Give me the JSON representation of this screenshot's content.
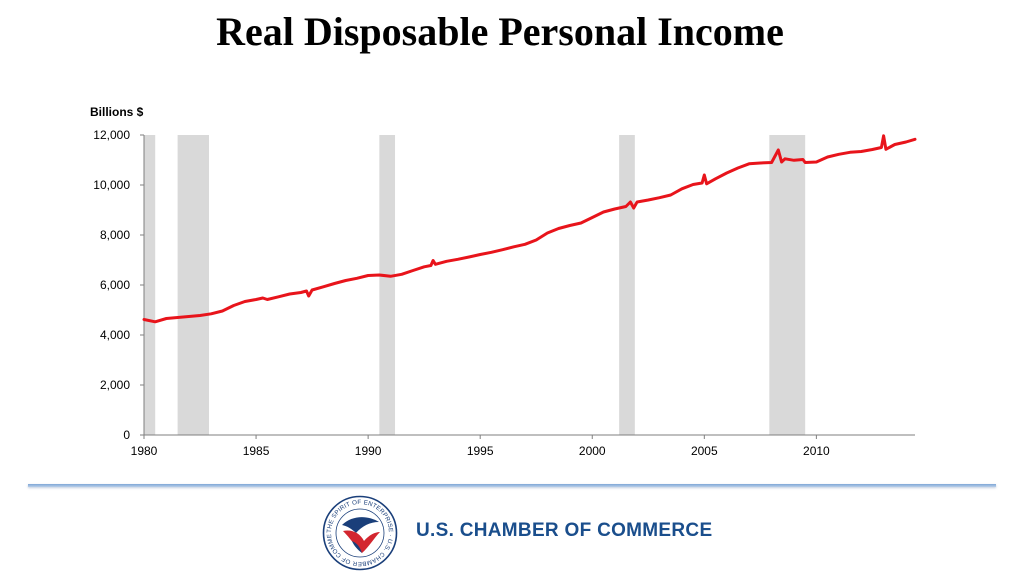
{
  "header": {
    "title": "Real Disposable Personal Income"
  },
  "chart_data": {
    "type": "line",
    "title": "Real Disposable Personal Income",
    "ylabel": "Billions $",
    "xlabel": "",
    "xlim": [
      1980,
      2014.4
    ],
    "ylim": [
      0,
      12000
    ],
    "x_ticks": [
      1980,
      1985,
      1990,
      1995,
      2000,
      2005,
      2010
    ],
    "x_tick_labels": [
      "1980",
      "1985",
      "1990",
      "1995",
      "2000",
      "2005",
      "2010"
    ],
    "y_ticks": [
      0,
      2000,
      4000,
      6000,
      8000,
      10000,
      12000
    ],
    "y_tick_labels": [
      "0",
      "2,000",
      "4,000",
      "6,000",
      "8,000",
      "10,000",
      "12,000"
    ],
    "line_color": "#e8141b",
    "recession_color": "#d9d9d9",
    "recessions": [
      [
        1980.0,
        1980.5
      ],
      [
        1981.5,
        1982.9
      ],
      [
        1990.5,
        1991.2
      ],
      [
        2001.2,
        2001.9
      ],
      [
        2007.9,
        2009.5
      ]
    ],
    "series": [
      {
        "x": [
          1980.0,
          1980.5,
          1981.0,
          1981.5,
          1982.0,
          1982.5,
          1983.0,
          1983.5,
          1984.0,
          1984.5,
          1985.0,
          1985.3,
          1985.5,
          1986.0,
          1986.5,
          1987.0,
          1987.25,
          1987.35,
          1987.5,
          1988.0,
          1988.5,
          1989.0,
          1989.5,
          1990.0,
          1990.5,
          1991.0,
          1991.5,
          1992.0,
          1992.5,
          1992.8,
          1992.9,
          1993.0,
          1993.5,
          1994.0,
          1994.5,
          1995.0,
          1995.5,
          1996.0,
          1996.5,
          1997.0,
          1997.5,
          1998.0,
          1998.5,
          1999.0,
          1999.5,
          2000.0,
          2000.5,
          2001.0,
          2001.5,
          2001.7,
          2001.85,
          2002.0,
          2002.5,
          2003.0,
          2003.5,
          2004.0,
          2004.5,
          2004.9,
          2005.0,
          2005.1,
          2005.5,
          2006.0,
          2006.5,
          2007.0,
          2007.5,
          2008.0,
          2008.3,
          2008.45,
          2008.6,
          2009.0,
          2009.4,
          2009.5,
          2010.0,
          2010.5,
          2011.0,
          2011.5,
          2012.0,
          2012.5,
          2012.9,
          2013.0,
          2013.1,
          2013.5,
          2014.0,
          2014.4
        ],
        "values": [
          4620,
          4530,
          4660,
          4700,
          4740,
          4780,
          4850,
          4960,
          5180,
          5340,
          5420,
          5480,
          5420,
          5530,
          5640,
          5700,
          5760,
          5560,
          5800,
          5930,
          6060,
          6180,
          6270,
          6380,
          6400,
          6350,
          6430,
          6580,
          6730,
          6780,
          6980,
          6830,
          6950,
          7030,
          7120,
          7220,
          7310,
          7410,
          7530,
          7630,
          7800,
          8080,
          8260,
          8380,
          8480,
          8700,
          8920,
          9040,
          9140,
          9320,
          9080,
          9320,
          9400,
          9490,
          9600,
          9850,
          10020,
          10080,
          10400,
          10050,
          10250,
          10480,
          10680,
          10850,
          10880,
          10900,
          11400,
          10920,
          11050,
          10990,
          11020,
          10900,
          10920,
          11120,
          11230,
          11310,
          11340,
          11420,
          11500,
          11970,
          11430,
          11620,
          11720,
          11830
        ]
      }
    ]
  },
  "footer": {
    "brand_text": "U.S. CHAMBER OF COMMERCE",
    "brand_color": "#1a4e8c",
    "logo_text": "THE SPIRIT OF ENTERPRISE · U.S. CHAMBER OF COMMERCE",
    "logo_icon": "eagle-seal-icon",
    "logo_colors": {
      "blue": "#1a3f7a",
      "red": "#d3262f"
    }
  }
}
